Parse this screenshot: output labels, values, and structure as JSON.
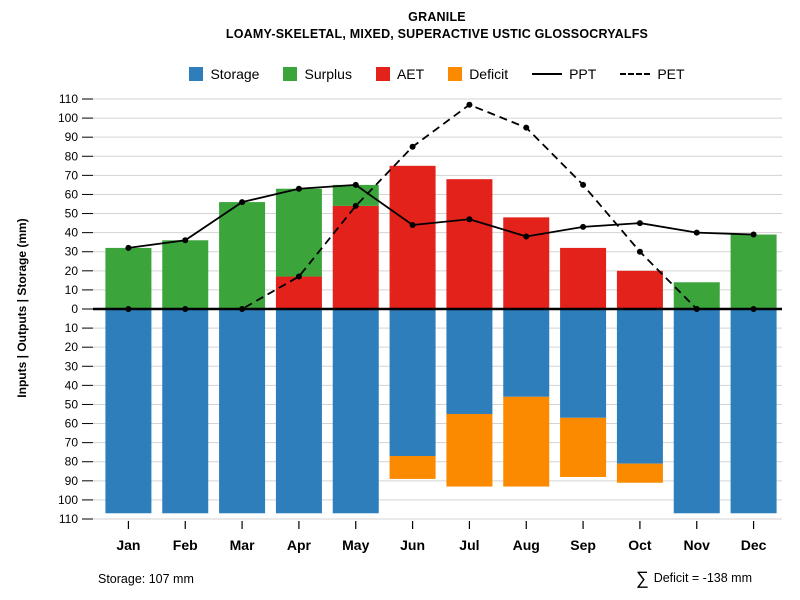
{
  "title": "GRANILE",
  "subtitle": "LOAMY-SKELETAL, MIXED, SUPERACTIVE USTIC GLOSSOCRYALFS",
  "ylabel": "Inputs | Outputs | Storage   (mm)",
  "footer": {
    "storage": "Storage: 107 mm",
    "deficit_symbol": "∑",
    "deficit_text": "Deficit = -138 mm"
  },
  "legend": [
    {
      "label": "Storage",
      "swatch": "box",
      "color": "#2E7EBC"
    },
    {
      "label": "Surplus",
      "swatch": "box",
      "color": "#3BA43B"
    },
    {
      "label": "AET",
      "swatch": "box",
      "color": "#E3221C"
    },
    {
      "label": "Deficit",
      "swatch": "box",
      "color": "#FB8A00"
    },
    {
      "label": "PPT",
      "swatch": "line-solid",
      "color": "#000000"
    },
    {
      "label": "PET",
      "swatch": "line-dashed",
      "color": "#000000"
    }
  ],
  "chart_data": {
    "type": "bar",
    "subtype": "mirrored water-balance bars with PPT/PET line overlay",
    "months": [
      "Jan",
      "Feb",
      "Mar",
      "Apr",
      "May",
      "Jun",
      "Jul",
      "Aug",
      "Sep",
      "Oct",
      "Nov",
      "Dec"
    ],
    "ylim": [
      -110,
      110
    ],
    "ytick_step": 10,
    "grid": "on",
    "legend_position": "top-center",
    "series_above": [
      {
        "name": "AET",
        "color": "#E3221C",
        "values": [
          0,
          0,
          0,
          17,
          54,
          75,
          68,
          48,
          32,
          20,
          0,
          0
        ]
      },
      {
        "name": "Surplus",
        "color": "#3BA43B",
        "values": [
          32,
          36,
          56,
          46,
          11,
          0,
          0,
          0,
          0,
          0,
          14,
          39
        ]
      }
    ],
    "series_below": [
      {
        "name": "Storage",
        "color": "#2E7EBC",
        "values": [
          107,
          107,
          107,
          107,
          107,
          77,
          55,
          46,
          57,
          81,
          107,
          107
        ]
      },
      {
        "name": "Deficit",
        "color": "#FB8A00",
        "values": [
          0,
          0,
          0,
          0,
          0,
          12,
          38,
          47,
          31,
          10,
          0,
          0
        ]
      }
    ],
    "lines": [
      {
        "name": "PPT",
        "dash": "solid",
        "color": "#000000",
        "values": [
          32,
          36,
          56,
          63,
          65,
          44,
          47,
          38,
          43,
          45,
          40,
          39
        ]
      },
      {
        "name": "PET",
        "dash": "dashed",
        "color": "#000000",
        "values": [
          0,
          0,
          0,
          17,
          54,
          85,
          107,
          95,
          65,
          30,
          0,
          0
        ]
      }
    ]
  }
}
